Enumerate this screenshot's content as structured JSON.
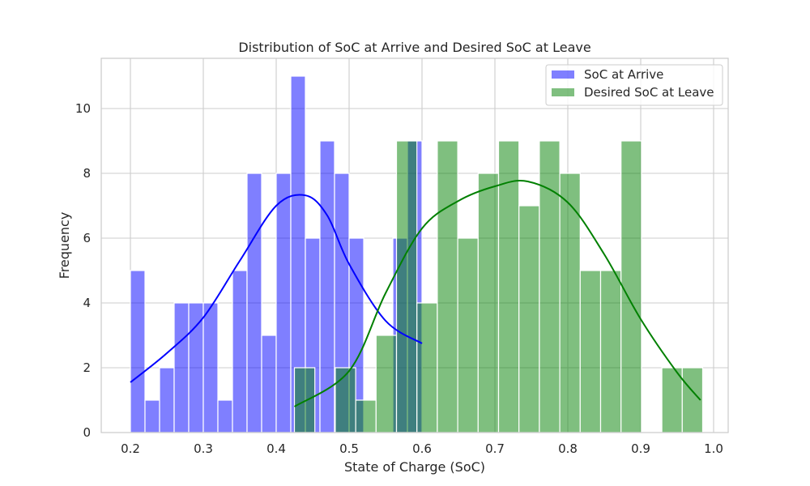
{
  "chart_data": {
    "type": "histogram",
    "title": "Distribution of SoC at Arrive and Desired SoC at Leave",
    "xlabel": "State of Charge (SoC)",
    "ylabel": "Frequency",
    "xlim": [
      0.16,
      1.02
    ],
    "ylim": [
      0,
      11.55
    ],
    "xticks": [
      0.2,
      0.3,
      0.4,
      0.5,
      0.6,
      0.7,
      0.8,
      0.9,
      1.0
    ],
    "xtick_labels": [
      "0.2",
      "0.3",
      "0.4",
      "0.5",
      "0.6",
      "0.7",
      "0.8",
      "0.9",
      "1.0"
    ],
    "yticks": [
      0,
      2,
      4,
      6,
      8,
      10
    ],
    "ytick_labels": [
      "0",
      "2",
      "4",
      "6",
      "8",
      "10"
    ],
    "grid": true,
    "legend_position": "top-right",
    "series": [
      {
        "name": "SoC at Arrive",
        "color": "#0000ff",
        "kde_color": "#0000ff",
        "bin_edges": [
          0.2,
          0.22,
          0.24,
          0.26,
          0.28,
          0.3,
          0.32,
          0.34,
          0.36,
          0.38,
          0.4,
          0.42,
          0.44,
          0.46,
          0.48,
          0.5,
          0.52,
          0.54,
          0.56,
          0.58,
          0.6
        ],
        "counts": [
          5,
          1,
          2,
          4,
          4,
          4,
          1,
          5,
          8,
          3,
          8,
          11,
          6,
          9,
          8,
          6,
          0,
          0,
          6,
          9
        ],
        "kde": {
          "x": [
            0.2,
            0.25,
            0.3,
            0.35,
            0.4,
            0.44,
            0.47,
            0.5,
            0.55,
            0.6
          ],
          "y": [
            1.55,
            2.45,
            3.55,
            5.3,
            7.0,
            7.32,
            6.7,
            5.2,
            3.45,
            2.75
          ]
        }
      },
      {
        "name": "Desired SoC at Leave",
        "color": "#008000",
        "kde_color": "#008000",
        "bin_edges": [
          0.425,
          0.453,
          0.481,
          0.509,
          0.537,
          0.565,
          0.593,
          0.621,
          0.649,
          0.677,
          0.705,
          0.733,
          0.761,
          0.789,
          0.817,
          0.845,
          0.873,
          0.901,
          0.929,
          0.957,
          0.985
        ],
        "counts": [
          2,
          0,
          2,
          1,
          3,
          9,
          4,
          9,
          6,
          8,
          9,
          7,
          9,
          8,
          5,
          5,
          9,
          0,
          2,
          2
        ],
        "kde": {
          "x": [
            0.425,
            0.5,
            0.55,
            0.6,
            0.65,
            0.7,
            0.745,
            0.8,
            0.85,
            0.9,
            0.95,
            0.982
          ],
          "y": [
            0.8,
            1.9,
            4.3,
            6.3,
            7.15,
            7.6,
            7.75,
            7.1,
            5.5,
            3.5,
            1.85,
            1.0
          ]
        }
      }
    ]
  }
}
